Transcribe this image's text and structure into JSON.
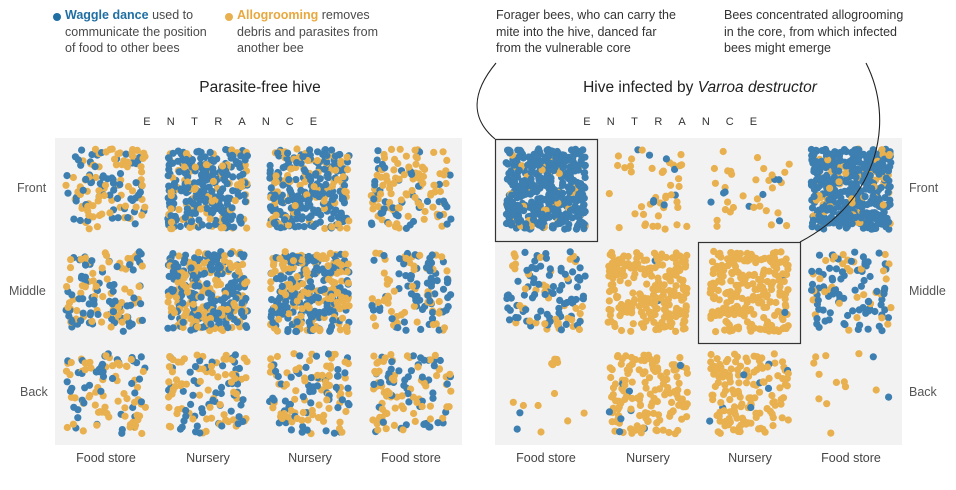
{
  "legend": {
    "waggle": {
      "term": "Waggle dance",
      "rest_line1": " used to",
      "line2": "communicate the position",
      "line3": "of food to other bees",
      "color": "#1f6fa3"
    },
    "allo": {
      "term": "Allogrooming",
      "rest_line1": " removes",
      "line2": "debris and parasites from",
      "line3": "another bee",
      "color": "#e8b04e"
    }
  },
  "annotations": {
    "forager": {
      "line1": "Forager bees, who can carry the",
      "line2": "mite into the hive, danced far",
      "line3": "from the vulnerable core"
    },
    "core": {
      "line1": "Bees concentrated allogrooming",
      "line2": "in the core, from which infected",
      "line3": "bees might emerge"
    }
  },
  "colors": {
    "waggle_dot": "#3d7fb0",
    "allo_dot": "#e8b04e",
    "panel_bg": "#f2f2f2"
  },
  "entrance_letters": [
    "E",
    "N",
    "T",
    "R",
    "A",
    "N",
    "C",
    "E"
  ],
  "rows": [
    "Front",
    "Middle",
    "Back"
  ],
  "columns": [
    "Food store",
    "Nursery",
    "Nursery",
    "Food store"
  ],
  "chart_data": [
    {
      "type": "scatter",
      "title": "Parasite-free hive",
      "title_plain": "Parasite-free hive",
      "title_italic": "",
      "xlabel": "ENTRANCE",
      "grid_rows": [
        "Front",
        "Middle",
        "Back"
      ],
      "grid_columns": [
        "Food store",
        "Nursery",
        "Nursery",
        "Food store"
      ],
      "series": [
        {
          "name": "Waggle dance",
          "counts": [
            [
              60,
              230,
              200,
              45
            ],
            [
              70,
              180,
              170,
              70
            ],
            [
              45,
              55,
              55,
              50
            ]
          ]
        },
        {
          "name": "Allogrooming",
          "counts": [
            [
              75,
              90,
              100,
              90
            ],
            [
              60,
              140,
              150,
              55
            ],
            [
              65,
              70,
              75,
              70
            ]
          ]
        }
      ]
    },
    {
      "type": "scatter",
      "title": "Hive infected by Varroa destructor",
      "title_plain": "Hive infected by ",
      "title_italic": "Varroa destructor",
      "xlabel": "ENTRANCE",
      "grid_rows": [
        "Front",
        "Middle",
        "Back"
      ],
      "grid_columns": [
        "Food store",
        "Nursery",
        "Nursery",
        "Food store"
      ],
      "highlighted_cells": [
        [
          "Front",
          "Food store"
        ],
        [
          "Middle",
          "Nursery"
        ]
      ],
      "series": [
        {
          "name": "Waggle dance",
          "counts": [
            [
              420,
              8,
              8,
              420
            ],
            [
              80,
              2,
              2,
              80
            ],
            [
              2,
              8,
              8,
              2
            ]
          ]
        },
        {
          "name": "Allogrooming",
          "counts": [
            [
              40,
              40,
              30,
              60
            ],
            [
              40,
              220,
              220,
              35
            ],
            [
              12,
              140,
              140,
              12
            ]
          ]
        }
      ]
    }
  ]
}
